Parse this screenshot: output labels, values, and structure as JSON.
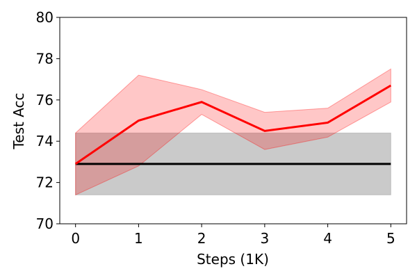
{
  "chart_data": {
    "type": "line",
    "xlabel": "Steps (1K)",
    "ylabel": "Test Acc",
    "xlim": [
      -0.25,
      5.25
    ],
    "ylim": [
      70,
      80
    ],
    "x_ticks": [
      0,
      1,
      2,
      3,
      4,
      5
    ],
    "y_ticks": [
      70,
      72,
      74,
      76,
      78,
      80
    ],
    "grid": false,
    "series": [
      {
        "color": "#ff0000",
        "band_color": "#ff0000",
        "x": [
          0,
          1,
          2,
          3,
          4,
          5
        ],
        "y": [
          72.9,
          75.0,
          75.9,
          74.5,
          74.9,
          76.7
        ],
        "lower": [
          71.4,
          72.8,
          75.3,
          73.6,
          74.2,
          75.9
        ],
        "upper": [
          74.4,
          77.2,
          76.5,
          75.4,
          75.6,
          77.5
        ]
      },
      {
        "color": "#000000",
        "band_color": "#808080",
        "x": [
          0,
          1,
          2,
          3,
          4,
          5
        ],
        "y": [
          72.9,
          72.9,
          72.9,
          72.9,
          72.9,
          72.9
        ],
        "lower": [
          71.4,
          71.4,
          71.4,
          71.4,
          71.4,
          71.4
        ],
        "upper": [
          74.4,
          74.4,
          74.4,
          74.4,
          74.4,
          74.4
        ]
      }
    ]
  }
}
